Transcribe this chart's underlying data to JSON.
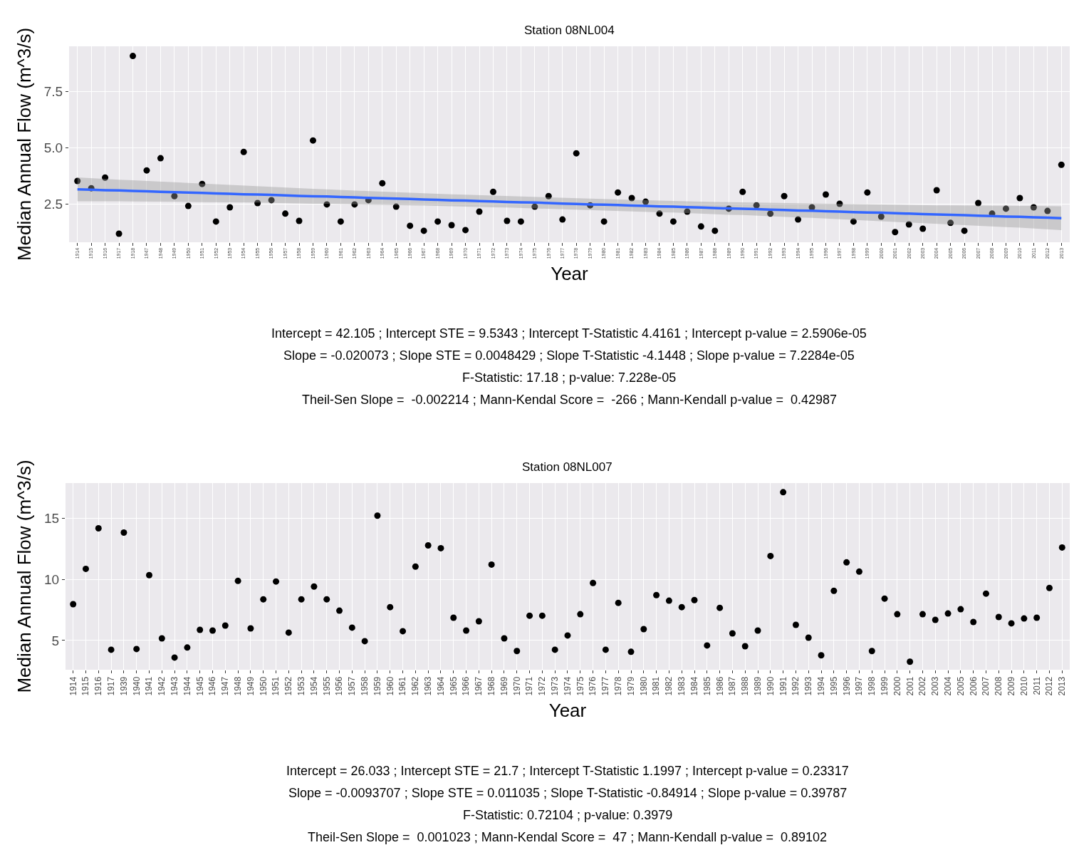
{
  "chart_data": [
    {
      "type": "scatter",
      "title": "Station 08NL004",
      "xlabel": "Year",
      "ylabel": "Median Annual Flow (m^3/s)",
      "categories": [
        "1914",
        "1915",
        "1916",
        "1917",
        "1918",
        "1947",
        "1948",
        "1949",
        "1950",
        "1951",
        "1952",
        "1953",
        "1954",
        "1955",
        "1956",
        "1957",
        "1958",
        "1959",
        "1960",
        "1961",
        "1962",
        "1963",
        "1964",
        "1965",
        "1966",
        "1967",
        "1968",
        "1969",
        "1970",
        "1971",
        "1972",
        "1973",
        "1974",
        "1975",
        "1976",
        "1977",
        "1978",
        "1979",
        "1980",
        "1981",
        "1982",
        "1983",
        "1984",
        "1985",
        "1986",
        "1987",
        "1988",
        "1989",
        "1990",
        "1991",
        "1992",
        "1993",
        "1994",
        "1995",
        "1996",
        "1997",
        "1998",
        "1999",
        "2000",
        "2001",
        "2002",
        "2003",
        "2004",
        "2005",
        "2006",
        "2007",
        "2008",
        "2009",
        "2010",
        "2011",
        "2012",
        "2013"
      ],
      "series": [
        {
          "color": "#000000",
          "values": [
            3.52,
            3.2,
            3.67,
            1.18,
            9.07,
            3.99,
            4.53,
            2.85,
            2.41,
            3.39,
            1.72,
            2.35,
            4.81,
            2.54,
            2.67,
            2.07,
            1.75,
            5.32,
            2.48,
            1.72,
            2.48,
            2.67,
            3.42,
            2.38,
            1.53,
            1.31,
            1.72,
            1.56,
            1.34,
            2.16,
            3.04,
            1.75,
            1.72,
            2.38,
            2.85,
            1.81,
            4.75,
            2.44,
            1.72,
            3.01,
            2.76,
            2.6,
            2.07,
            1.72,
            2.16,
            1.5,
            1.31,
            2.29,
            3.04,
            2.44,
            2.07,
            2.85,
            1.81,
            2.35,
            2.92,
            2.51,
            1.72,
            3.01,
            1.94,
            1.25,
            1.59,
            1.4,
            3.11,
            1.66,
            1.31,
            2.54,
            2.07,
            2.29,
            2.76,
            2.35,
            2.19,
            4.24
          ]
        },
        {
          "type": "line",
          "marker": "none",
          "color": "#3366ff",
          "values": [
            3.15,
            3.13,
            3.11,
            3.1,
            3.08,
            3.06,
            3.04,
            3.02,
            3.01,
            2.99,
            2.97,
            2.95,
            2.93,
            2.92,
            2.9,
            2.88,
            2.86,
            2.84,
            2.83,
            2.81,
            2.79,
            2.77,
            2.75,
            2.74,
            2.72,
            2.7,
            2.68,
            2.66,
            2.65,
            2.63,
            2.61,
            2.59,
            2.57,
            2.56,
            2.54,
            2.52,
            2.5,
            2.48,
            2.47,
            2.45,
            2.43,
            2.41,
            2.39,
            2.38,
            2.36,
            2.34,
            2.32,
            2.3,
            2.29,
            2.27,
            2.25,
            2.23,
            2.21,
            2.2,
            2.18,
            2.16,
            2.14,
            2.12,
            2.11,
            2.09,
            2.07,
            2.05,
            2.03,
            2.02,
            2.0,
            1.98,
            1.96,
            1.94,
            1.93,
            1.91,
            1.89,
            1.87
          ],
          "lower": [
            2.62,
            2.62,
            2.61,
            2.62,
            2.61,
            2.6,
            2.6,
            2.59,
            2.59,
            2.58,
            2.58,
            2.57,
            2.56,
            2.56,
            2.55,
            2.54,
            2.53,
            2.51,
            2.51,
            2.5,
            2.49,
            2.47,
            2.46,
            2.46,
            2.44,
            2.43,
            2.41,
            2.39,
            2.39,
            2.37,
            2.35,
            2.34,
            2.32,
            2.31,
            2.29,
            2.27,
            2.25,
            2.23,
            2.22,
            2.2,
            2.18,
            2.15,
            2.13,
            2.12,
            2.09,
            2.07,
            2.05,
            2.02,
            2.01,
            1.98,
            1.95,
            1.93,
            1.9,
            1.88,
            1.85,
            1.83,
            1.8,
            1.77,
            1.75,
            1.72,
            1.69,
            1.66,
            1.62,
            1.6,
            1.57,
            1.54,
            1.5,
            1.47,
            1.45,
            1.41,
            1.38,
            1.34
          ],
          "upper": [
            3.68,
            3.64,
            3.61,
            3.58,
            3.55,
            3.52,
            3.48,
            3.45,
            3.43,
            3.4,
            3.36,
            3.33,
            3.3,
            3.28,
            3.25,
            3.22,
            3.19,
            3.17,
            3.15,
            3.12,
            3.09,
            3.07,
            3.04,
            3.02,
            3.0,
            2.97,
            2.95,
            2.93,
            2.91,
            2.89,
            2.87,
            2.84,
            2.82,
            2.81,
            2.79,
            2.77,
            2.75,
            2.73,
            2.72,
            2.7,
            2.68,
            2.67,
            2.65,
            2.64,
            2.63,
            2.61,
            2.59,
            2.58,
            2.57,
            2.56,
            2.55,
            2.53,
            2.52,
            2.52,
            2.51,
            2.49,
            2.48,
            2.47,
            2.47,
            2.46,
            2.45,
            2.44,
            2.44,
            2.44,
            2.43,
            2.42,
            2.42,
            2.41,
            2.41,
            2.41,
            2.4,
            2.4
          ]
        }
      ],
      "ylim": [
        0.8,
        9.5
      ],
      "yticks": [
        {
          "value": 2.5,
          "label": "2.5"
        },
        {
          "value": 5,
          "label": "5.0"
        },
        7.5
      ],
      "grid": true,
      "marker": "circle",
      "annotations": [
        "Intercept = 42.105 ; Intercept STE = 9.5343 ; Intercept T-Statistic 4.4161 ; Intercept p-value = 2.5906e-05",
        "Slope = -0.020073 ; Slope STE = 0.0048429 ; Slope T-Statistic -4.1448 ; Slope p-value = 7.2284e-05",
        "F-Statistic: 17.18 ; p-value: 7.228e-05",
        "Theil-Sen Slope =  -0.002214 ; Mann-Kendal Score =  -266 ; Mann-Kendall p-value =  0.42987"
      ]
    },
    {
      "type": "scatter",
      "title": "Station 08NL007",
      "xlabel": "Year",
      "ylabel": "Median Annual Flow (m^3/s)",
      "categories": [
        "1914",
        "1915",
        "1916",
        "1917",
        "1939",
        "1940",
        "1941",
        "1942",
        "1943",
        "1944",
        "1945",
        "1946",
        "1947",
        "1948",
        "1949",
        "1950",
        "1951",
        "1952",
        "1953",
        "1954",
        "1955",
        "1956",
        "1957",
        "1958",
        "1959",
        "1960",
        "1961",
        "1962",
        "1963",
        "1964",
        "1965",
        "1966",
        "1967",
        "1968",
        "1969",
        "1970",
        "1971",
        "1972",
        "1973",
        "1974",
        "1975",
        "1976",
        "1977",
        "1978",
        "1979",
        "1980",
        "1981",
        "1982",
        "1983",
        "1984",
        "1985",
        "1986",
        "1987",
        "1988",
        "1989",
        "1990",
        "1991",
        "1992",
        "1993",
        "1994",
        "1995",
        "1996",
        "1997",
        "1998",
        "1999",
        "2000",
        "2001",
        "2002",
        "2003",
        "2004",
        "2005",
        "2006",
        "2007",
        "2008",
        "2009",
        "2010",
        "2011",
        "2012",
        "2013"
      ],
      "series": [
        {
          "color": "#000000",
          "values": [
            7.97,
            10.87,
            14.19,
            4.24,
            13.84,
            4.3,
            10.35,
            5.17,
            3.6,
            4.42,
            5.87,
            5.81,
            6.22,
            9.88,
            5.99,
            8.37,
            9.83,
            5.64,
            8.37,
            9.42,
            8.37,
            7.44,
            6.05,
            4.94,
            15.23,
            7.73,
            5.76,
            11.05,
            12.79,
            12.56,
            6.86,
            5.81,
            6.57,
            11.22,
            5.17,
            4.13,
            7.03,
            7.03,
            4.24,
            5.41,
            7.15,
            9.71,
            4.24,
            8.08,
            4.07,
            5.93,
            8.72,
            8.26,
            7.73,
            8.31,
            4.59,
            7.67,
            5.58,
            4.53,
            5.81,
            11.92,
            17.15,
            6.28,
            5.23,
            3.78,
            9.07,
            11.4,
            10.64,
            4.13,
            8.43,
            7.15,
            3.26,
            7.15,
            6.69,
            7.21,
            7.56,
            6.51,
            8.84,
            6.92,
            6.4,
            6.8,
            6.86,
            9.3,
            12.62
          ]
        }
      ],
      "ylim": [
        2.6,
        17.9
      ],
      "yticks": [
        5,
        10,
        15
      ],
      "grid": true,
      "marker": "circle",
      "annotations": [
        "Intercept = 26.033 ; Intercept STE = 21.7 ; Intercept T-Statistic 1.1997 ; Intercept p-value = 0.23317",
        "Slope = -0.0093707 ; Slope STE = 0.011035 ; Slope T-Statistic -0.84914 ; Slope p-value = 0.39787",
        "F-Statistic: 0.72104 ; p-value: 0.3979",
        "Theil-Sen Slope =  0.001023 ; Mann-Kendal Score =  47 ; Mann-Kendall p-value =  0.89102"
      ]
    }
  ]
}
